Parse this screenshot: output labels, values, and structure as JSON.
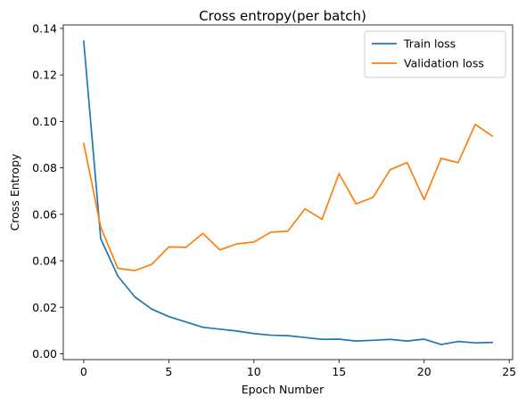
{
  "chart_data": {
    "type": "line",
    "title": "Cross entropy(per batch)",
    "xlabel": "Epoch Number",
    "ylabel": "Cross Entropy",
    "xlim": [
      -1.2,
      25.2
    ],
    "ylim": [
      -0.0025,
      0.1415
    ],
    "xticks": [
      0,
      5,
      10,
      15,
      20,
      25
    ],
    "xtick_labels": [
      "0",
      "5",
      "10",
      "15",
      "20",
      "25"
    ],
    "yticks": [
      0.0,
      0.02,
      0.04,
      0.06,
      0.08,
      0.1,
      0.12,
      0.14
    ],
    "ytick_labels": [
      "0.00",
      "0.02",
      "0.04",
      "0.06",
      "0.08",
      "0.10",
      "0.12",
      "0.14"
    ],
    "grid": false,
    "legend_position": "top-right",
    "x": [
      0,
      1,
      2,
      3,
      4,
      5,
      6,
      7,
      8,
      9,
      10,
      11,
      12,
      13,
      14,
      15,
      16,
      17,
      18,
      19,
      20,
      21,
      22,
      23,
      24
    ],
    "series": [
      {
        "name": "Train loss",
        "color": "#1f77b4",
        "values": [
          0.1345,
          0.0495,
          0.0335,
          0.0245,
          0.0192,
          0.016,
          0.0137,
          0.0114,
          0.0106,
          0.0098,
          0.0087,
          0.008,
          0.0078,
          0.007,
          0.0062,
          0.0063,
          0.0055,
          0.0058,
          0.0062,
          0.0055,
          0.0063,
          0.004,
          0.0053,
          0.0047,
          0.0049
        ]
      },
      {
        "name": "Validation loss",
        "color": "#ff7f0e",
        "values": [
          0.0905,
          0.0545,
          0.0368,
          0.0358,
          0.0385,
          0.046,
          0.0458,
          0.0518,
          0.0447,
          0.0473,
          0.0481,
          0.0523,
          0.0528,
          0.0624,
          0.0579,
          0.0775,
          0.0645,
          0.0673,
          0.0792,
          0.0823,
          0.0663,
          0.0841,
          0.0822,
          0.0987,
          0.0937
        ]
      }
    ]
  }
}
